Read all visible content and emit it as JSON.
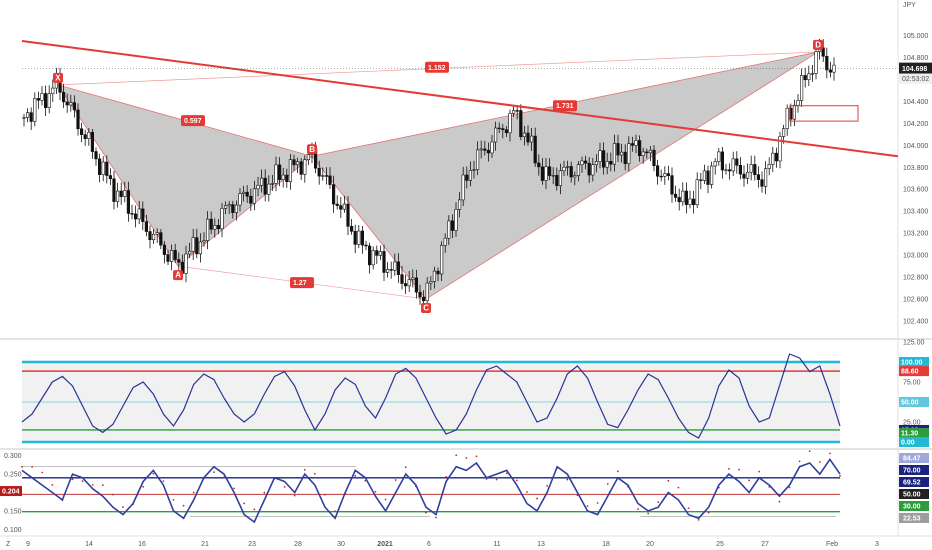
{
  "currency": "JPY",
  "chart_data": [
    {
      "type": "candlestick",
      "currency_label": "JPY",
      "ylim": [
        102.3,
        105.25
      ],
      "y_ticks": [
        "105.000",
        "104.800",
        "104.600",
        "104.400",
        "104.200",
        "104.000",
        "103.800",
        "103.600",
        "103.400",
        "103.200",
        "103.000",
        "102.800",
        "102.600",
        "102.400"
      ],
      "x_ticks": [
        "9",
        "14",
        "16",
        "21",
        "23",
        "28",
        "30",
        "2021",
        "6",
        "11",
        "13",
        "18",
        "20",
        "25",
        "27",
        "Feb",
        "3"
      ],
      "last_price": "104.698",
      "countdown": "02:53:02",
      "pattern_points": [
        {
          "label": "X",
          "price": 104.55
        },
        {
          "label": "A",
          "price": 102.9
        },
        {
          "label": "B",
          "price": 103.9
        },
        {
          "label": "C",
          "price": 102.6
        },
        {
          "label": "D",
          "price": 104.85
        }
      ],
      "ratio_labels": [
        "0.597",
        "1.27",
        "1.731",
        "1.152"
      ],
      "trendline": {
        "start": 104.95,
        "end": 103.9
      },
      "target_box": {
        "from": 104.22,
        "to": 104.36
      }
    },
    {
      "type": "line",
      "ylim": [
        -5,
        125
      ],
      "y_ticks": [
        "125.00",
        "75.00",
        "25.00",
        "0.00"
      ],
      "levels": [
        "100.00",
        "88.60",
        "50.00",
        "15.03",
        "11.30",
        "0.00"
      ],
      "level_colors": {
        "upper": "#22b8d6",
        "red": "#e53935",
        "mid": "#63c7dd",
        "green": "#2e9c3c",
        "navy": "#1a237e"
      },
      "series": [
        {
          "values": [
            25,
            35,
            55,
            75,
            82,
            70,
            45,
            20,
            12,
            22,
            45,
            68,
            75,
            60,
            35,
            20,
            40,
            72,
            85,
            78,
            55,
            35,
            25,
            35,
            60,
            82,
            88,
            70,
            40,
            15,
            35,
            65,
            80,
            72,
            45,
            30,
            55,
            85,
            92,
            80,
            55,
            30,
            10,
            15,
            35,
            65,
            90,
            95,
            85,
            75,
            50,
            25,
            30,
            55,
            85,
            95,
            80,
            50,
            22,
            18,
            40,
            65,
            85,
            78,
            55,
            30,
            12,
            5,
            30,
            70,
            90,
            80,
            45,
            25,
            30,
            70,
            110,
            105,
            88,
            95,
            60,
            20
          ]
        }
      ]
    },
    {
      "type": "line",
      "ylim": [
        0.09,
        0.31
      ],
      "y_ticks": [
        "0.300",
        "0.250",
        "0.200",
        "0.150",
        "0.100"
      ],
      "current_value": "0.204",
      "levels": [
        "84.47",
        "70.00",
        "69.52",
        "50.00",
        "30.00",
        "22.53"
      ],
      "level_colors": {
        "upper": "#1a237e",
        "mid": "#b71c1c",
        "lower": "#2e9c3c",
        "dots": "#c62828",
        "line": "#303f9f"
      },
      "series": [
        {
          "values": [
            0.26,
            0.24,
            0.22,
            0.2,
            0.18,
            0.25,
            0.24,
            0.21,
            0.19,
            0.16,
            0.14,
            0.17,
            0.23,
            0.26,
            0.22,
            0.15,
            0.13,
            0.18,
            0.24,
            0.27,
            0.25,
            0.2,
            0.14,
            0.12,
            0.18,
            0.24,
            0.23,
            0.2,
            0.25,
            0.22,
            0.16,
            0.13,
            0.2,
            0.26,
            0.24,
            0.19,
            0.15,
            0.2,
            0.25,
            0.22,
            0.16,
            0.14,
            0.23,
            0.27,
            0.26,
            0.28,
            0.24,
            0.25,
            0.26,
            0.22,
            0.17,
            0.15,
            0.2,
            0.27,
            0.25,
            0.2,
            0.15,
            0.14,
            0.19,
            0.24,
            0.22,
            0.17,
            0.15,
            0.16,
            0.2,
            0.18,
            0.14,
            0.13,
            0.16,
            0.22,
            0.25,
            0.23,
            0.2,
            0.24,
            0.22,
            0.19,
            0.22,
            0.27,
            0.28,
            0.25,
            0.29,
            0.25
          ]
        }
      ]
    }
  ]
}
